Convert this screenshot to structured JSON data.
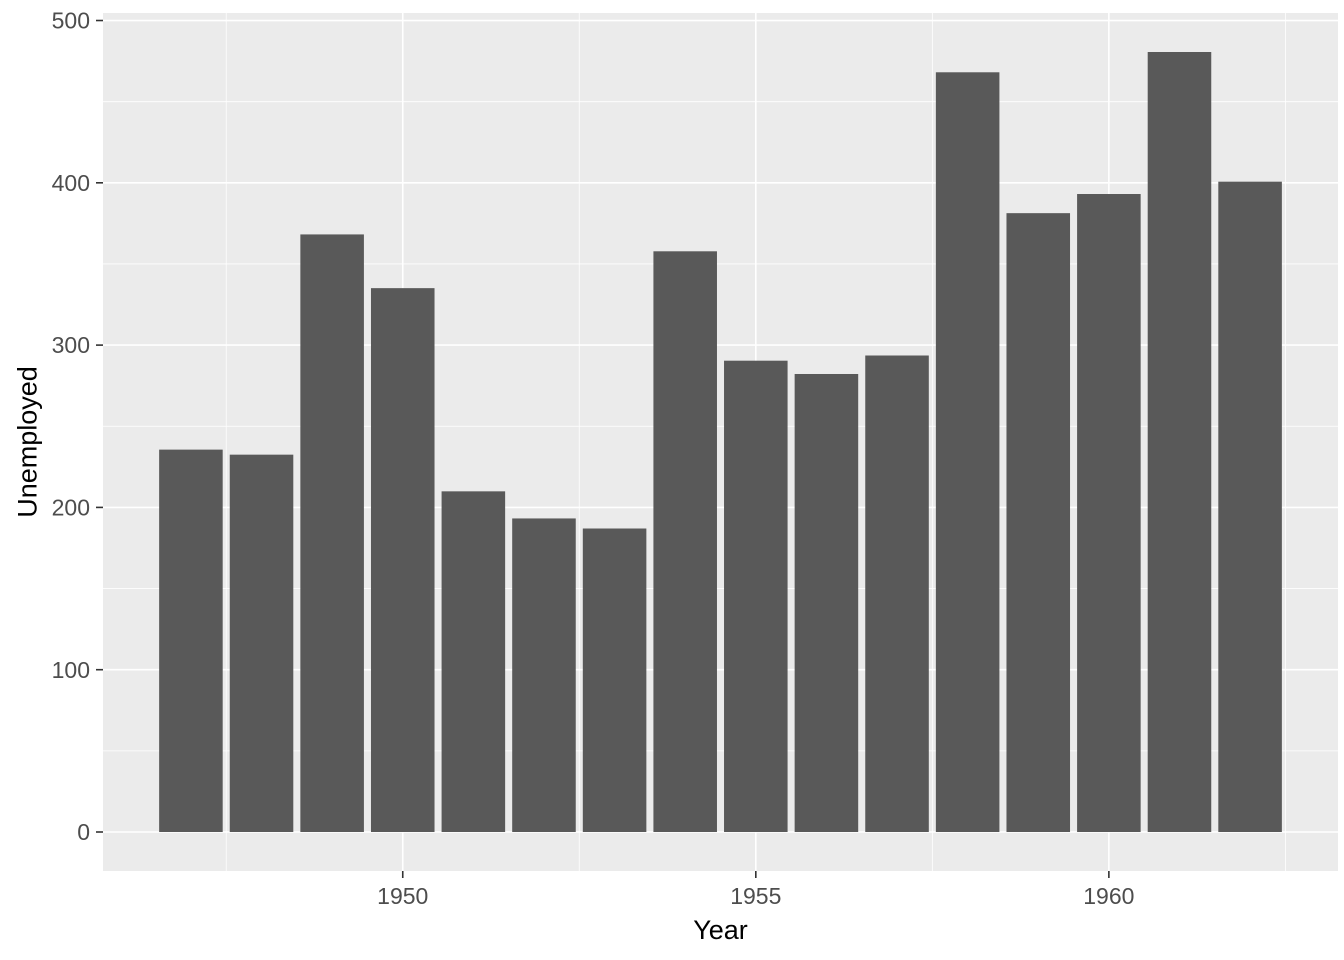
{
  "chart_data": {
    "type": "bar",
    "title": "",
    "xlabel": "Year",
    "ylabel": "Unemployed",
    "x": [
      1947,
      1948,
      1949,
      1950,
      1951,
      1952,
      1953,
      1954,
      1955,
      1956,
      1957,
      1958,
      1959,
      1960,
      1961,
      1962
    ],
    "values": [
      235.6,
      232.5,
      368.2,
      335.1,
      209.9,
      193.2,
      187.0,
      357.8,
      290.4,
      282.2,
      293.6,
      468.1,
      381.3,
      393.1,
      480.6,
      400.7
    ],
    "bar_width": 0.9,
    "x_domain": [
      1945.755,
      1963.245
    ],
    "y_domain": [
      -24.03,
      504.63
    ],
    "x_major_ticks": [
      1950,
      1955,
      1960
    ],
    "x_minor_ticks": [
      1947.5,
      1952.5,
      1957.5,
      1962.5
    ],
    "y_major_ticks": [
      0,
      100,
      200,
      300,
      400,
      500
    ],
    "y_minor_ticks": [
      50,
      150,
      250,
      350,
      450
    ],
    "grid": true,
    "legend": "none",
    "colors": {
      "bar_fill": "#595959",
      "panel_background": "#EBEBEB",
      "grid_major": "#FFFFFF",
      "grid_minor": "#FFFFFF",
      "axis_text": "#4D4D4D",
      "axis_title": "#000000",
      "tick_mark": "#333333",
      "page_background": "#FFFFFF"
    }
  }
}
